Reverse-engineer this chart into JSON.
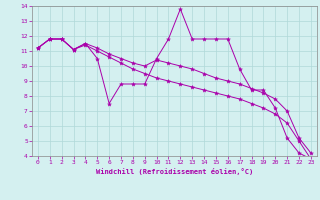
{
  "xlabel": "Windchill (Refroidissement éolien,°C)",
  "bg_color": "#d4f0f0",
  "line_color": "#aa00aa",
  "grid_color": "#b0d8d8",
  "xlim": [
    -0.5,
    23.5
  ],
  "ylim": [
    4,
    14
  ],
  "xticks": [
    0,
    1,
    2,
    3,
    4,
    5,
    6,
    7,
    8,
    9,
    10,
    11,
    12,
    13,
    14,
    15,
    16,
    17,
    18,
    19,
    20,
    21,
    22,
    23
  ],
  "yticks": [
    4,
    5,
    6,
    7,
    8,
    9,
    10,
    11,
    12,
    13,
    14
  ],
  "series": [
    [
      11.2,
      11.8,
      11.8,
      11.1,
      11.5,
      10.5,
      7.5,
      8.8,
      8.8,
      8.8,
      10.5,
      11.8,
      13.8,
      11.8,
      11.8,
      11.8,
      11.8,
      9.8,
      8.4,
      8.4,
      7.2,
      5.2,
      4.2,
      3.8
    ],
    [
      11.2,
      11.8,
      11.8,
      11.1,
      11.5,
      11.2,
      10.8,
      10.5,
      10.2,
      10.0,
      10.4,
      10.2,
      10.0,
      9.8,
      9.5,
      9.2,
      9.0,
      8.8,
      8.5,
      8.2,
      7.8,
      7.0,
      5.2,
      4.2
    ],
    [
      11.2,
      11.8,
      11.8,
      11.1,
      11.4,
      11.0,
      10.6,
      10.2,
      9.8,
      9.5,
      9.2,
      9.0,
      8.8,
      8.6,
      8.4,
      8.2,
      8.0,
      7.8,
      7.5,
      7.2,
      6.8,
      6.2,
      5.0,
      3.8
    ]
  ]
}
